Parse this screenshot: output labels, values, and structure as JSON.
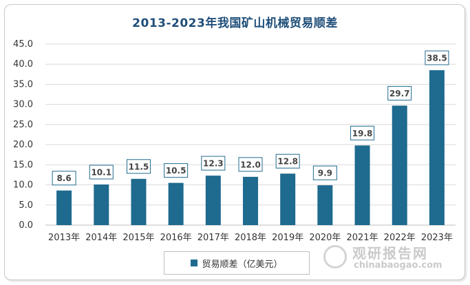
{
  "chart_data": {
    "type": "bar",
    "title": "2013-2023年我国矿山机械贸易顺差",
    "categories": [
      "2013年",
      "2014年",
      "2015年",
      "2016年",
      "2017年",
      "2018年",
      "2019年",
      "2020年",
      "2021年",
      "2022年",
      "2023年"
    ],
    "series": [
      {
        "name": "贸易顺差（亿美元）",
        "values": [
          8.6,
          10.1,
          11.5,
          10.5,
          12.3,
          12.0,
          12.8,
          9.9,
          19.8,
          29.7,
          38.5
        ]
      }
    ],
    "value_labels": [
      "8.6",
      "10.1",
      "11.5",
      "10.5",
      "12.3",
      "12.0",
      "12.8",
      "9.9",
      "19.8",
      "29.7",
      "38.5"
    ],
    "y_ticks": [
      "0.0",
      "5.0",
      "10.0",
      "15.0",
      "20.0",
      "25.0",
      "30.0",
      "35.0",
      "40.0",
      "45.0"
    ],
    "ylim": [
      0,
      45
    ],
    "grid": true,
    "legend_position": "bottom",
    "bar_color": "#1f6a8f",
    "grid_color": "#d9d9d9"
  },
  "watermark": {
    "cn": "观研报告网",
    "en": "chinabaogao.com"
  }
}
